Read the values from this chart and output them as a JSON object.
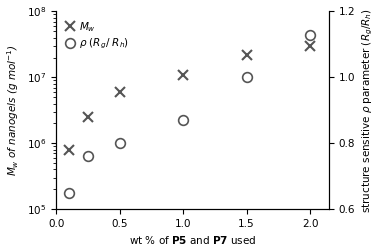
{
  "x_mw": [
    0.1,
    0.25,
    0.5,
    1.0,
    1.5,
    2.0
  ],
  "y_mw": [
    800000.0,
    2500000.0,
    6000000.0,
    11000000.0,
    22000000.0,
    30000000.0
  ],
  "x_rho": [
    0.1,
    0.25,
    0.5,
    1.0,
    1.5,
    2.0
  ],
  "y_rho": [
    0.65,
    0.76,
    0.8,
    0.87,
    1.0,
    1.13
  ],
  "xlim": [
    0.0,
    2.15
  ],
  "ylim_left": [
    100000.0,
    100000000.0
  ],
  "ylim_right": [
    0.6,
    1.2
  ],
  "xlabel": "wt % of $\\mathbf{P5}$ and $\\mathbf{P7}$ used",
  "ylabel_left": "$M_w$ of nanogels (g mol$^{-1}$)",
  "ylabel_right": "structure sensitive $\\rho$ parameter ($R_g$/$R_h$)",
  "yticks_right": [
    0.6,
    0.8,
    1.0,
    1.2
  ],
  "xticks": [
    0.0,
    0.5,
    1.0,
    1.5,
    2.0
  ],
  "legend_mw": "$M_w$",
  "legend_rho": "$\\rho$ ($R_g$/ $R_h$)",
  "marker_mw": "x",
  "marker_rho": "o",
  "color": "#555555",
  "fontsize": 7.5
}
